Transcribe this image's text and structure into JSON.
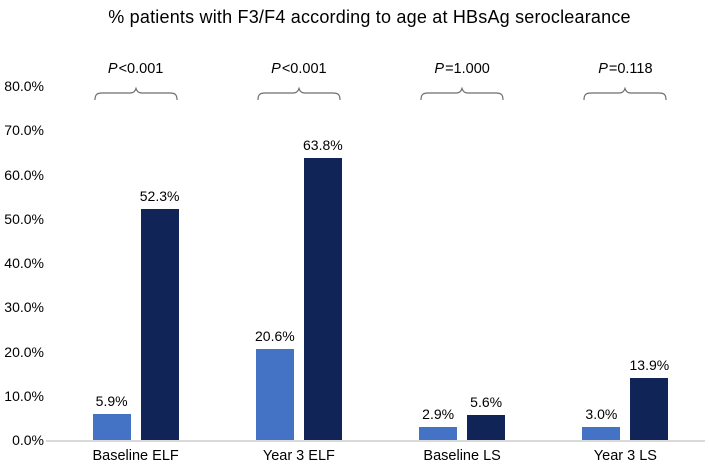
{
  "chart_data": {
    "type": "bar",
    "title": "% patients with F3/F4 according to age at HBsAg seroclearance",
    "categories": [
      "Baseline ELF",
      "Year 3 ELF",
      "Baseline LS",
      "Year 3 LS"
    ],
    "series": [
      {
        "color": "#4472C4",
        "values": [
          5.9,
          20.6,
          2.9,
          3.0
        ]
      },
      {
        "color": "#102458",
        "values": [
          52.3,
          63.8,
          5.6,
          13.9
        ]
      }
    ],
    "bar_value_labels": [
      [
        "5.9%",
        "52.3%"
      ],
      [
        "20.6%",
        "63.8%"
      ],
      [
        "2.9%",
        "5.6%"
      ],
      [
        "3.0%",
        "13.9%"
      ]
    ],
    "p_values": [
      "P<0.001",
      "P<0.001",
      "P=1.000",
      "P=0.118"
    ],
    "y_ticks": [
      "0.0%",
      "10.0%",
      "20.0%",
      "30.0%",
      "40.0%",
      "50.0%",
      "60.0%",
      "70.0%",
      "80.0%"
    ],
    "ylim": [
      0,
      80
    ],
    "grid": "off",
    "legend": "none",
    "colors": {
      "bar_light_blue": "#4472C4",
      "bar_dark_navy": "#102458",
      "axis_line": "#D9D9D9",
      "bracket_line": "#6E6E6E",
      "text": "#000000"
    }
  }
}
